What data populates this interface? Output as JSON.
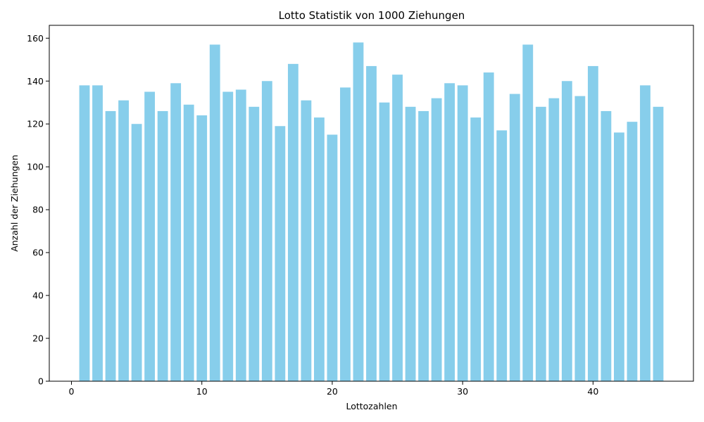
{
  "chart_data": {
    "type": "bar",
    "title": "Lotto Statistik von 1000 Ziehungen",
    "xlabel": "Lottozahlen",
    "ylabel": "Anzahl der Ziehungen",
    "bar_color": "#87CEEB",
    "xlim": [
      -1.7,
      47.7
    ],
    "ylim": [
      0,
      166
    ],
    "xticks": [
      0,
      10,
      20,
      30,
      40
    ],
    "yticks": [
      0,
      20,
      40,
      60,
      80,
      100,
      120,
      140,
      160
    ],
    "x": [
      1,
      2,
      3,
      4,
      5,
      6,
      7,
      8,
      9,
      10,
      11,
      12,
      13,
      14,
      15,
      16,
      17,
      18,
      19,
      20,
      21,
      22,
      23,
      24,
      25,
      26,
      27,
      28,
      29,
      30,
      31,
      32,
      33,
      34,
      35,
      36,
      37,
      38,
      39,
      40,
      41,
      42,
      43,
      44,
      45
    ],
    "values": [
      138,
      138,
      126,
      131,
      120,
      135,
      126,
      139,
      129,
      124,
      157,
      135,
      136,
      128,
      140,
      119,
      148,
      131,
      123,
      115,
      137,
      158,
      147,
      130,
      143,
      128,
      126,
      132,
      139,
      138,
      123,
      144,
      117,
      134,
      157,
      128,
      132,
      140,
      133,
      147,
      126,
      116,
      121,
      138,
      128
    ],
    "grid": false,
    "legend": "none"
  }
}
